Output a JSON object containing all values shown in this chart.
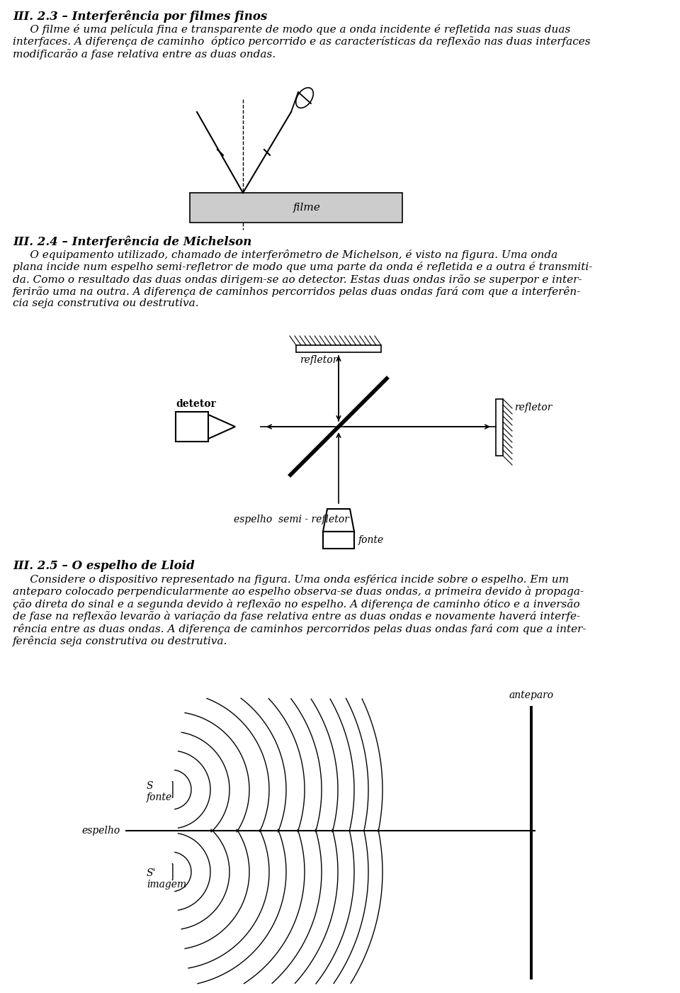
{
  "bg_color": "#ffffff",
  "section1_title": "III. 2.3 – Interferência por filmes finos",
  "section1_body": "     O filme é uma película fina e transparente de modo que a onda incidente é refletida nas suas duas\ninterfaces. A diferença de caminho  óptico percorrido e as características da reflexão nas duas interfaces\nmodificarão a fase relativa entre as duas ondas.",
  "section2_title": "III. 2.4 – Interferência de Michelson",
  "section2_body": "     O equipamento utilizado, chamado de interferômetro de Michelson, é visto na figura. Uma onda\nplana incide num espelho semi-refletror de modo que uma parte da onda é refletida e a outra é transmiti-\nda. Como o resultado das duas ondas dirigem-se ao detector. Estas duas ondas irão se superpor e inter-\nferirão uma na outra. A diferença de caminhos percorridos pelas duas ondas fará com que a interferên-\ncia seja construtiva ou destrutiva.",
  "section3_title": "III. 2.5 – O espelho de Lloid",
  "section3_body": "     Considere o dispositivo representado na figura. Uma onda esférica incide sobre o espelho. Em um\nanteparo colocado perpendicularmente ao espelho observa-se duas ondas, a primeira devido à propaga-\nção direta do sinal e a segunda devido à reflexão no espelho. A diferença de caminho ótico e a inversão\nde fase na reflexão levarão à variação da fase relativa entre as duas ondas e novamente haverá interfe-\nrência entre as duas ondas. A diferença de caminhos percorridos pelas duas ondas fará com que a inter-\nferência seja construtiva ou destrutiva.",
  "filme_label": "filme",
  "refletor_label1": "refletor",
  "refletor_label2": "refletor",
  "detetor_label": "detetor",
  "espelho_label": "espelho  semi - refletor",
  "fonte_label": "fonte",
  "anteparo_label": "anteparo",
  "espelho_mirror_label": "espelho",
  "S_fonte_label": "S\nfonte",
  "S_imagem_label": "S'\nimagem"
}
